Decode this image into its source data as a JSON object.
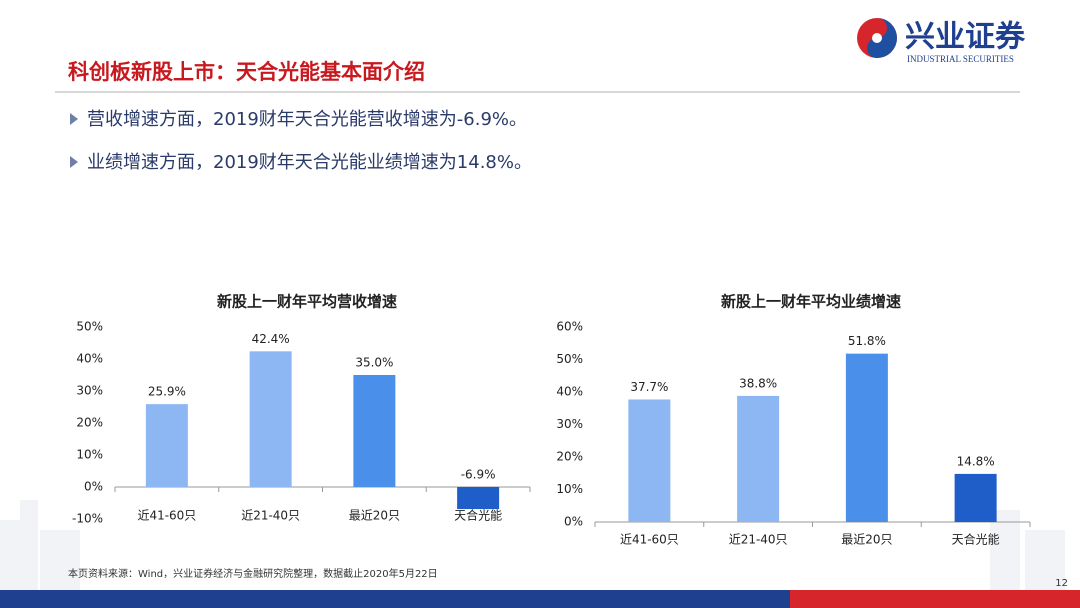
{
  "header": {
    "title": "科创板新股上市：天合光能基本面介绍",
    "logo_name": "兴业证券",
    "logo_sub": "INDUSTRIAL SECURITIES"
  },
  "bullets": [
    "营收增速方面，2019财年天合光能营收增速为-6.9%。",
    "业绩增速方面，2019财年天合光能业绩增速为14.8%。"
  ],
  "source": "本页资料来源：Wind，兴业证券经济与金融研究院整理，数据截止2020年5月22日",
  "page_number": "12",
  "chart_data": [
    {
      "type": "bar",
      "title": "新股上一财年平均营收增速",
      "categories": [
        "近41-60只",
        "近21-40只",
        "最近20只",
        "天合光能"
      ],
      "values": [
        25.9,
        42.4,
        35.0,
        -6.9
      ],
      "value_labels": [
        "25.9%",
        "42.4%",
        "35.0%",
        "-6.9%"
      ],
      "colors": [
        "#8db7f2",
        "#8db7f2",
        "#4a8fe9",
        "#1f5ec9"
      ],
      "ylim": [
        -10,
        50
      ],
      "yticks": [
        {
          "value": -10,
          "label": "-10%"
        },
        {
          "value": 0,
          "label": "0%"
        },
        {
          "value": 10,
          "label": "10%"
        },
        {
          "value": 20,
          "label": "20%"
        },
        {
          "value": 30,
          "label": "30%"
        },
        {
          "value": 40,
          "label": "40%"
        },
        {
          "value": 50,
          "label": "50%"
        }
      ],
      "grid": false
    },
    {
      "type": "bar",
      "title": "新股上一财年平均业绩增速",
      "categories": [
        "近41-60只",
        "近21-40只",
        "最近20只",
        "天合光能"
      ],
      "values": [
        37.7,
        38.8,
        51.8,
        14.8
      ],
      "value_labels": [
        "37.7%",
        "38.8%",
        "51.8%",
        "14.8%"
      ],
      "colors": [
        "#8db7f2",
        "#8db7f2",
        "#4a8fe9",
        "#1f5ec9"
      ],
      "ylim": [
        0,
        60
      ],
      "yticks": [
        {
          "value": 0,
          "label": "0%"
        },
        {
          "value": 10,
          "label": "10%"
        },
        {
          "value": 20,
          "label": "20%"
        },
        {
          "value": 30,
          "label": "30%"
        },
        {
          "value": 40,
          "label": "40%"
        },
        {
          "value": 50,
          "label": "50%"
        },
        {
          "value": 60,
          "label": "60%"
        }
      ],
      "grid": false
    }
  ]
}
